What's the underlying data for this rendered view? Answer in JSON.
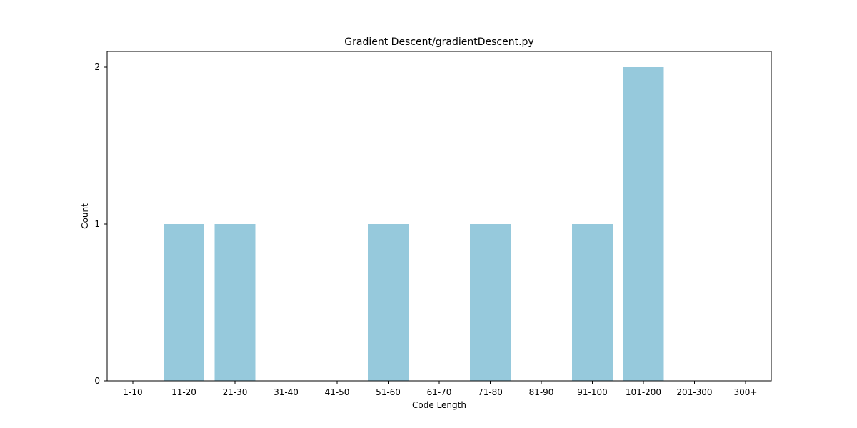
{
  "chart_data": {
    "type": "bar",
    "title": "Gradient Descent/gradientDescent.py",
    "xlabel": "Code Length",
    "ylabel": "Count",
    "categories": [
      "1-10",
      "11-20",
      "21-30",
      "31-40",
      "41-50",
      "51-60",
      "61-70",
      "71-80",
      "81-90",
      "91-100",
      "101-200",
      "201-300",
      "300+"
    ],
    "values": [
      0,
      1,
      1,
      0,
      0,
      1,
      0,
      1,
      0,
      1,
      2,
      0,
      0
    ],
    "yticks": [
      0,
      1,
      2
    ],
    "ylim": [
      0,
      2.1
    ],
    "grid": false,
    "legend": null,
    "colors": {
      "bar": "#96c9dc",
      "axis": "#000000"
    }
  }
}
